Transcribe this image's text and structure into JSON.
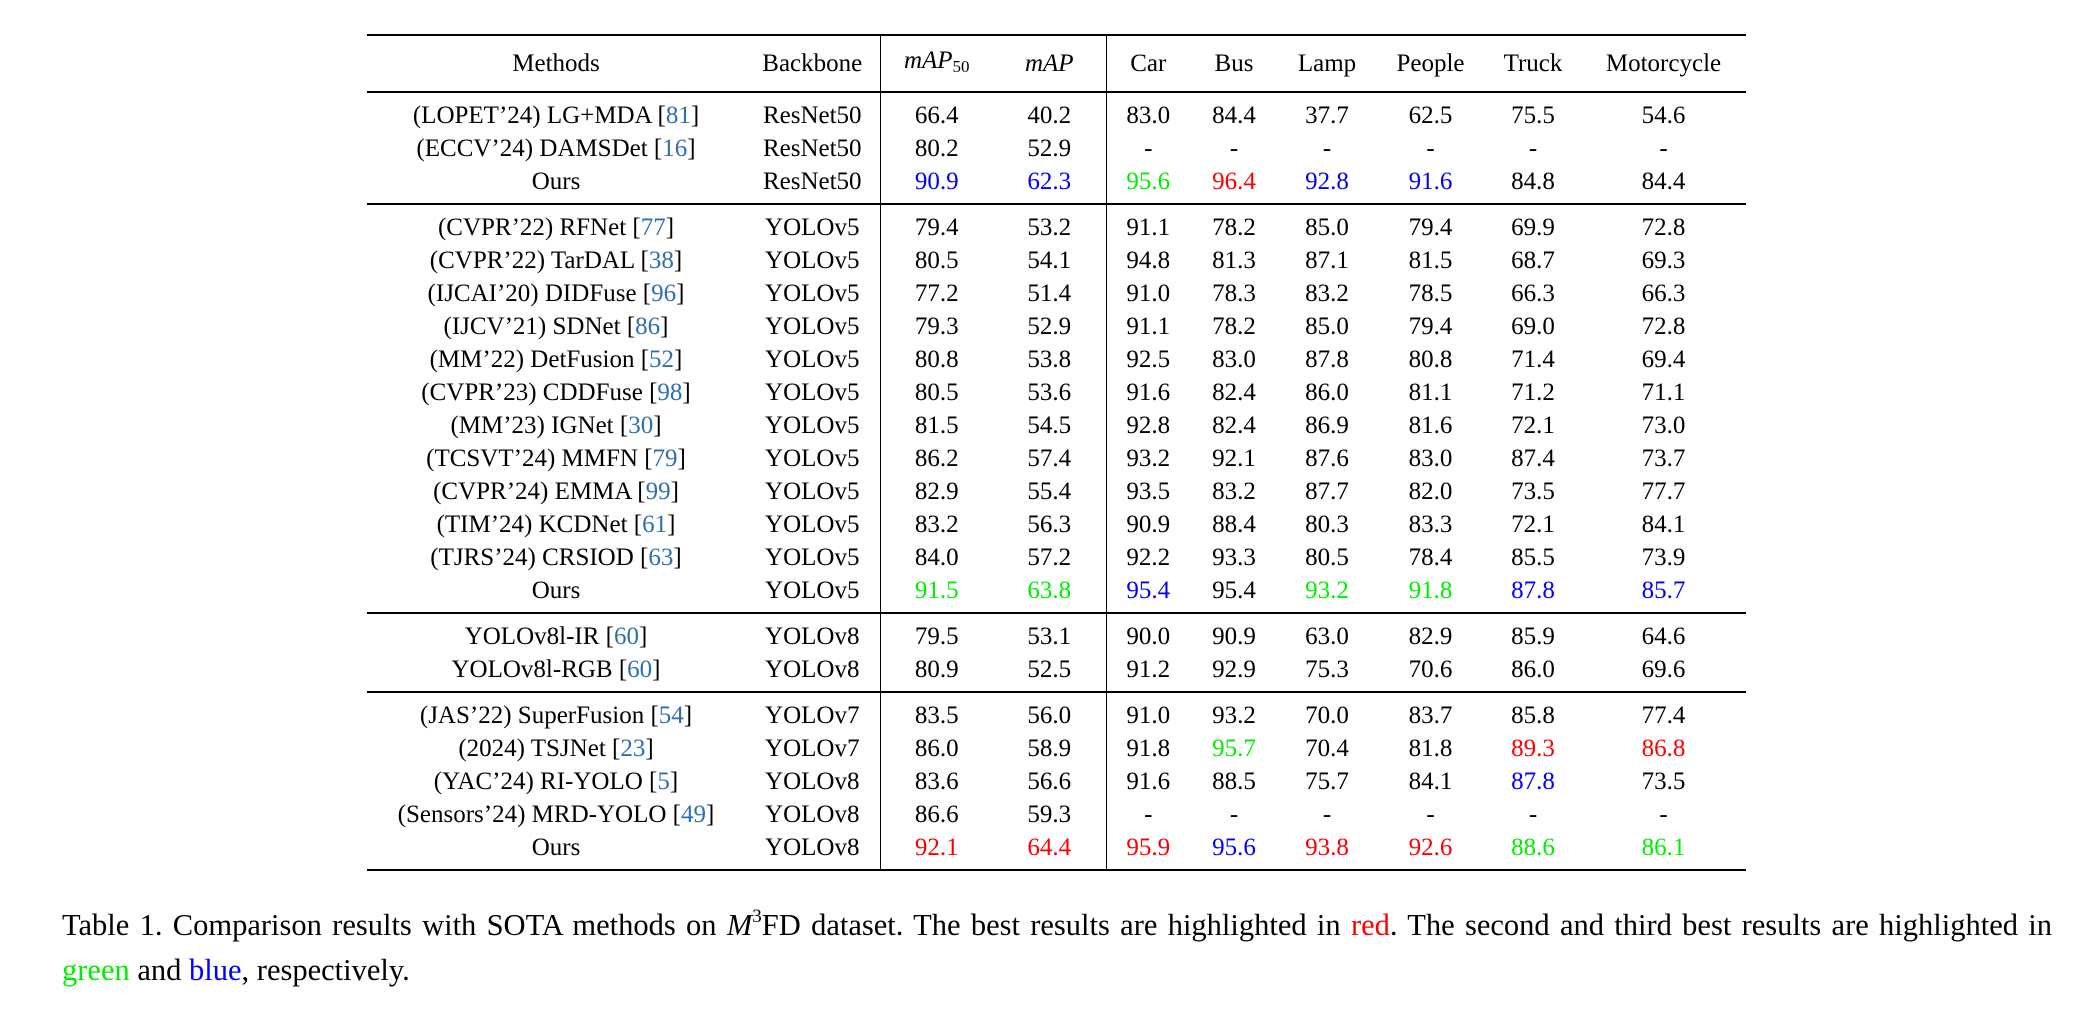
{
  "columns": {
    "methods": "Methods",
    "backbone": "Backbone",
    "map50_base": "mAP",
    "map50_sub": "50",
    "map": "mAP",
    "classes": [
      "Car",
      "Bus",
      "Lamp",
      "People",
      "Truck",
      "Motorcycle"
    ]
  },
  "highlight_colors": {
    "red": "#ff0000",
    "green": "#00ee00",
    "blue": "#0000ff",
    "citation": "#2f6fae"
  },
  "groups": [
    {
      "rows": [
        {
          "prefix": "(LOPET’24) LG+MDA",
          "ref": "81",
          "backbone": "ResNet50",
          "values": [
            "66.4",
            "40.2",
            "83.0",
            "84.4",
            "37.7",
            "62.5",
            "75.5",
            "54.6"
          ],
          "colors": [
            "",
            "",
            "",
            "",
            "",
            "",
            "",
            ""
          ]
        },
        {
          "prefix": "(ECCV’24) DAMSDet",
          "ref": "16",
          "backbone": "ResNet50",
          "values": [
            "80.2",
            "52.9",
            "-",
            "-",
            "-",
            "-",
            "-",
            "-"
          ],
          "colors": [
            "",
            "",
            "",
            "",
            "",
            "",
            "",
            ""
          ]
        },
        {
          "prefix": "Ours",
          "ref": "",
          "backbone": "ResNet50",
          "values": [
            "90.9",
            "62.3",
            "95.6",
            "96.4",
            "92.8",
            "91.6",
            "84.8",
            "84.4"
          ],
          "colors": [
            "blue",
            "blue",
            "green",
            "red",
            "blue",
            "blue",
            "",
            ""
          ]
        }
      ]
    },
    {
      "rows": [
        {
          "prefix": "(CVPR’22) RFNet",
          "ref": "77",
          "backbone": "YOLOv5",
          "values": [
            "79.4",
            "53.2",
            "91.1",
            "78.2",
            "85.0",
            "79.4",
            "69.9",
            "72.8"
          ],
          "colors": [
            "",
            "",
            "",
            "",
            "",
            "",
            "",
            ""
          ]
        },
        {
          "prefix": "(CVPR’22) TarDAL",
          "ref": "38",
          "backbone": "YOLOv5",
          "values": [
            "80.5",
            "54.1",
            "94.8",
            "81.3",
            "87.1",
            "81.5",
            "68.7",
            "69.3"
          ],
          "colors": [
            "",
            "",
            "",
            "",
            "",
            "",
            "",
            ""
          ]
        },
        {
          "prefix": "(IJCAI’20) DIDFuse",
          "ref": "96",
          "backbone": "YOLOv5",
          "values": [
            "77.2",
            "51.4",
            "91.0",
            "78.3",
            "83.2",
            "78.5",
            "66.3",
            "66.3"
          ],
          "colors": [
            "",
            "",
            "",
            "",
            "",
            "",
            "",
            ""
          ]
        },
        {
          "prefix": "(IJCV’21) SDNet",
          "ref": "86",
          "backbone": "YOLOv5",
          "values": [
            "79.3",
            "52.9",
            "91.1",
            "78.2",
            "85.0",
            "79.4",
            "69.0",
            "72.8"
          ],
          "colors": [
            "",
            "",
            "",
            "",
            "",
            "",
            "",
            ""
          ]
        },
        {
          "prefix": "(MM’22) DetFusion",
          "ref": "52",
          "backbone": "YOLOv5",
          "values": [
            "80.8",
            "53.8",
            "92.5",
            "83.0",
            "87.8",
            "80.8",
            "71.4",
            "69.4"
          ],
          "colors": [
            "",
            "",
            "",
            "",
            "",
            "",
            "",
            ""
          ]
        },
        {
          "prefix": "(CVPR’23) CDDFuse",
          "ref": "98",
          "backbone": "YOLOv5",
          "values": [
            "80.5",
            "53.6",
            "91.6",
            "82.4",
            "86.0",
            "81.1",
            "71.2",
            "71.1"
          ],
          "colors": [
            "",
            "",
            "",
            "",
            "",
            "",
            "",
            ""
          ]
        },
        {
          "prefix": "(MM’23) IGNet",
          "ref": "30",
          "backbone": "YOLOv5",
          "values": [
            "81.5",
            "54.5",
            "92.8",
            "82.4",
            "86.9",
            "81.6",
            "72.1",
            "73.0"
          ],
          "colors": [
            "",
            "",
            "",
            "",
            "",
            "",
            "",
            ""
          ]
        },
        {
          "prefix": "(TCSVT’24) MMFN",
          "ref": "79",
          "backbone": "YOLOv5",
          "values": [
            "86.2",
            "57.4",
            "93.2",
            "92.1",
            "87.6",
            "83.0",
            "87.4",
            "73.7"
          ],
          "colors": [
            "",
            "",
            "",
            "",
            "",
            "",
            "",
            ""
          ]
        },
        {
          "prefix": "(CVPR’24) EMMA",
          "ref": "99",
          "backbone": "YOLOv5",
          "values": [
            "82.9",
            "55.4",
            "93.5",
            "83.2",
            "87.7",
            "82.0",
            "73.5",
            "77.7"
          ],
          "colors": [
            "",
            "",
            "",
            "",
            "",
            "",
            "",
            ""
          ]
        },
        {
          "prefix": "(TIM’24) KCDNet",
          "ref": "61",
          "backbone": "YOLOv5",
          "values": [
            "83.2",
            "56.3",
            "90.9",
            "88.4",
            "80.3",
            "83.3",
            "72.1",
            "84.1"
          ],
          "colors": [
            "",
            "",
            "",
            "",
            "",
            "",
            "",
            ""
          ]
        },
        {
          "prefix": "(TJRS’24) CRSIOD",
          "ref": "63",
          "backbone": "YOLOv5",
          "values": [
            "84.0",
            "57.2",
            "92.2",
            "93.3",
            "80.5",
            "78.4",
            "85.5",
            "73.9"
          ],
          "colors": [
            "",
            "",
            "",
            "",
            "",
            "",
            "",
            ""
          ]
        },
        {
          "prefix": "Ours",
          "ref": "",
          "backbone": "YOLOv5",
          "values": [
            "91.5",
            "63.8",
            "95.4",
            "95.4",
            "93.2",
            "91.8",
            "87.8",
            "85.7"
          ],
          "colors": [
            "green",
            "green",
            "blue",
            "",
            "green",
            "green",
            "blue",
            "blue"
          ]
        }
      ]
    },
    {
      "rows": [
        {
          "prefix": "YOLOv8l-IR",
          "ref": "60",
          "backbone": "YOLOv8",
          "values": [
            "79.5",
            "53.1",
            "90.0",
            "90.9",
            "63.0",
            "82.9",
            "85.9",
            "64.6"
          ],
          "colors": [
            "",
            "",
            "",
            "",
            "",
            "",
            "",
            ""
          ]
        },
        {
          "prefix": "YOLOv8l-RGB",
          "ref": "60",
          "backbone": "YOLOv8",
          "values": [
            "80.9",
            "52.5",
            "91.2",
            "92.9",
            "75.3",
            "70.6",
            "86.0",
            "69.6"
          ],
          "colors": [
            "",
            "",
            "",
            "",
            "",
            "",
            "",
            ""
          ]
        }
      ]
    },
    {
      "rows": [
        {
          "prefix": "(JAS’22) SuperFusion",
          "ref": "54",
          "backbone": "YOLOv7",
          "values": [
            "83.5",
            "56.0",
            "91.0",
            "93.2",
            "70.0",
            "83.7",
            "85.8",
            "77.4"
          ],
          "colors": [
            "",
            "",
            "",
            "",
            "",
            "",
            "",
            ""
          ]
        },
        {
          "prefix": "(2024) TSJNet",
          "ref": "23",
          "backbone": "YOLOv7",
          "values": [
            "86.0",
            "58.9",
            "91.8",
            "95.7",
            "70.4",
            "81.8",
            "89.3",
            "86.8"
          ],
          "colors": [
            "",
            "",
            "",
            "green",
            "",
            "",
            "red",
            "red"
          ]
        },
        {
          "prefix": "(YAC’24) RI-YOLO",
          "ref": "5",
          "backbone": "YOLOv8",
          "values": [
            "83.6",
            "56.6",
            "91.6",
            "88.5",
            "75.7",
            "84.1",
            "87.8",
            "73.5"
          ],
          "colors": [
            "",
            "",
            "",
            "",
            "",
            "",
            "blue",
            ""
          ]
        },
        {
          "prefix": "(Sensors’24) MRD-YOLO",
          "ref": "49",
          "backbone": "YOLOv8",
          "values": [
            "86.6",
            "59.3",
            "-",
            "-",
            "-",
            "-",
            "-",
            "-"
          ],
          "colors": [
            "",
            "",
            "",
            "",
            "",
            "",
            "",
            ""
          ]
        },
        {
          "prefix": "Ours",
          "ref": "",
          "backbone": "YOLOv8",
          "values": [
            "92.1",
            "64.4",
            "95.9",
            "95.6",
            "93.8",
            "92.6",
            "88.6",
            "86.1"
          ],
          "colors": [
            "red",
            "red",
            "red",
            "blue",
            "red",
            "red",
            "green",
            "green"
          ]
        }
      ]
    }
  ],
  "caption": {
    "lead": "Table 1.  Comparison results with SOTA methods on ",
    "math_base": "M",
    "math_sup": "3",
    "after_math": "FD dataset.  The best results are highlighted in ",
    "red_word": "red",
    "mid": ".  The second and third best results are highlighted in ",
    "green_word": "green",
    "and_word": " and ",
    "blue_word": "blue",
    "tail": ", respectively."
  }
}
